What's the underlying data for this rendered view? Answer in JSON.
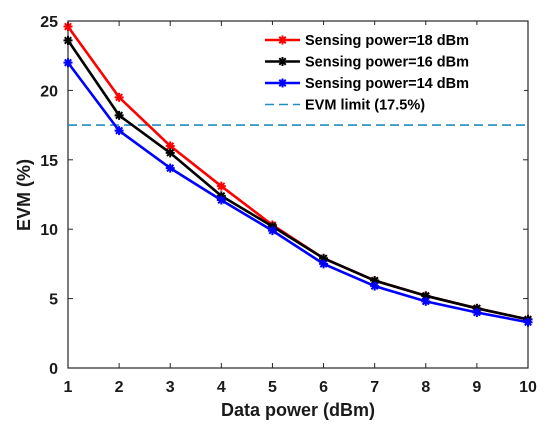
{
  "chart_data": {
    "type": "line",
    "xlabel": "Data power (dBm)",
    "ylabel": "EVM (%)",
    "x": [
      1,
      2,
      3,
      4,
      5,
      6,
      7,
      8,
      9,
      10
    ],
    "xlim": [
      1,
      10
    ],
    "ylim": [
      0,
      25
    ],
    "xticks": [
      "1",
      "2",
      "3",
      "4",
      "5",
      "6",
      "7",
      "8",
      "9",
      "10"
    ],
    "yticks": [
      "0",
      "5",
      "10",
      "15",
      "20",
      "25"
    ],
    "grid": false,
    "legend_position": "top-right",
    "series": [
      {
        "name": "Sensing power=18 dBm",
        "color": "#ff0000",
        "marker": "star",
        "values": [
          24.6,
          19.5,
          16.0,
          13.1,
          10.3,
          7.9,
          6.3,
          5.2,
          4.3,
          3.5
        ]
      },
      {
        "name": "Sensing power=16 dBm",
        "color": "#000000",
        "marker": "star",
        "values": [
          23.6,
          18.2,
          15.5,
          12.4,
          10.2,
          7.9,
          6.3,
          5.2,
          4.3,
          3.5
        ]
      },
      {
        "name": "Sensing power=14 dBm",
        "color": "#0000ff",
        "marker": "star",
        "values": [
          22.0,
          17.1,
          14.4,
          12.1,
          9.9,
          7.5,
          5.9,
          4.8,
          4.0,
          3.3
        ]
      }
    ],
    "reference_lines": [
      {
        "name": "EVM limit (17.5%)",
        "y": 17.5,
        "color": "#1f8fbf",
        "style": "dashed"
      }
    ]
  }
}
